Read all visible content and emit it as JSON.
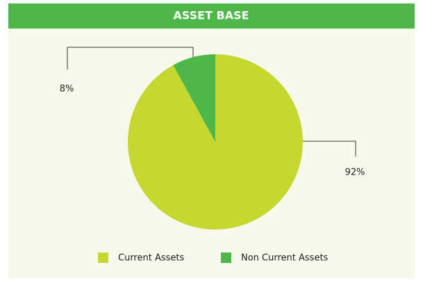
{
  "chart_data": {
    "type": "pie",
    "title": "ASSET BASE",
    "categories": [
      "Current Assets",
      "Non Current Assets"
    ],
    "values": [
      92,
      8
    ],
    "value_labels": [
      "92%",
      "8%"
    ],
    "colors": [
      "#c5d82f",
      "#4eb74a"
    ],
    "legend": "bottom"
  }
}
